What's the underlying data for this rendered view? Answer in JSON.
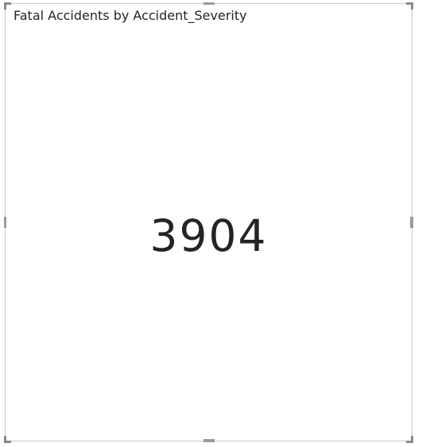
{
  "card": {
    "title": "Fatal Accidents by Accident_Severity",
    "value": "3904"
  }
}
